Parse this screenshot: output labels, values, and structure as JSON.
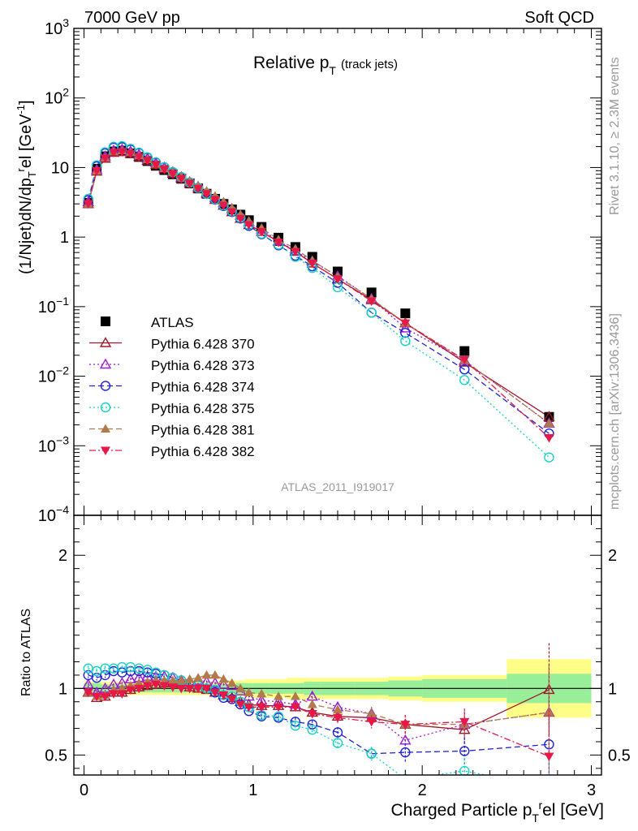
{
  "header": {
    "left": "7000 GeV pp",
    "right": "Soft QCD"
  },
  "side_text": {
    "rivet": "Rivet 3.1.10, ≥ 2.3M events",
    "mcplots": "mcplots.cern.ch [arXiv:1306.3436]"
  },
  "chart_data": [
    {
      "type": "scatter",
      "title": "Relative p_T (track jets)",
      "title_main": "Relative p",
      "title_sub": "T",
      "title_extra": "(track jets)",
      "ylabel": "(1/Njet)dN/dp_T^rel [GeV^-1]",
      "ylabel_parts": [
        "(1/Njet)dN/dp",
        "T",
        "r",
        "el [GeV",
        "-1",
        "]"
      ],
      "yscale": "log",
      "ylim": [
        0.0001,
        1000
      ],
      "xlim": [
        -0.06,
        3.06
      ],
      "yticks": [
        "10^-4",
        "10^-3",
        "10^-2",
        "10^-1",
        "1",
        "10",
        "10^2",
        "10^3"
      ],
      "analysis": "ATLAS_2011_I919017",
      "legend_position": "bottom-left",
      "x": [
        0.025,
        0.075,
        0.125,
        0.175,
        0.225,
        0.275,
        0.325,
        0.375,
        0.425,
        0.475,
        0.525,
        0.575,
        0.625,
        0.675,
        0.725,
        0.775,
        0.825,
        0.875,
        0.925,
        0.975,
        1.05,
        1.15,
        1.25,
        1.35,
        1.5,
        1.7,
        1.9,
        2.25,
        2.75
      ],
      "series": [
        {
          "name": "ATLAS",
          "color": "#000000",
          "marker": "square",
          "line": "none",
          "values": [
            3.1,
            9.6,
            14.5,
            17.0,
            17.5,
            16.0,
            14.2,
            12.4,
            10.6,
            9.2,
            8.0,
            6.9,
            5.9,
            5.0,
            4.2,
            3.55,
            3.0,
            2.5,
            2.1,
            1.75,
            1.4,
            0.98,
            0.72,
            0.52,
            0.32,
            0.16,
            0.08,
            0.023,
            0.0026
          ]
        },
        {
          "name": "Pythia 6.428 370",
          "color": "#a0162a",
          "marker": "triangle-open",
          "line": "solid",
          "values": [
            3.0,
            8.8,
            13.5,
            16.4,
            16.8,
            15.8,
            14.3,
            12.6,
            10.9,
            9.5,
            8.2,
            7.0,
            5.9,
            5.0,
            4.2,
            3.45,
            2.85,
            2.3,
            1.85,
            1.5,
            1.2,
            0.86,
            0.62,
            0.42,
            0.25,
            0.125,
            0.058,
            0.0158,
            0.0026
          ]
        },
        {
          "name": "Pythia 6.428 373",
          "color": "#9b19d2",
          "marker": "triangle-open",
          "line": "dotted",
          "values": [
            3.2,
            9.3,
            14.5,
            17.6,
            18.2,
            17.1,
            15.4,
            13.5,
            11.6,
            10.0,
            8.6,
            7.3,
            6.2,
            5.3,
            4.4,
            3.7,
            3.1,
            2.55,
            2.05,
            1.65,
            1.28,
            0.88,
            0.63,
            0.45,
            0.275,
            0.13,
            0.049,
            0.0168,
            0.0021
          ]
        },
        {
          "name": "Pythia 6.428 374",
          "color": "#2121d8",
          "marker": "circle-open",
          "line": "dashed",
          "values": [
            3.4,
            10.4,
            16.0,
            19.3,
            19.6,
            18.1,
            16.1,
            13.9,
            11.8,
            10.1,
            8.6,
            7.3,
            6.1,
            5.1,
            4.2,
            3.45,
            2.8,
            2.3,
            1.85,
            1.45,
            1.1,
            0.76,
            0.54,
            0.38,
            0.22,
            0.082,
            0.042,
            0.0125,
            0.0015
          ]
        },
        {
          "name": "Pythia 6.428 375",
          "color": "#14d2c1",
          "marker": "circle-open",
          "line": "dotted",
          "values": [
            3.55,
            10.8,
            16.6,
            19.9,
            20.3,
            18.6,
            16.4,
            14.1,
            11.9,
            10.1,
            8.6,
            7.3,
            6.1,
            5.1,
            4.2,
            3.5,
            2.85,
            2.35,
            1.9,
            1.5,
            1.12,
            0.78,
            0.52,
            0.36,
            0.19,
            0.082,
            0.032,
            0.0088,
            0.00068
          ]
        },
        {
          "name": "Pythia 6.428 381",
          "color": "#b27a48",
          "marker": "triangle",
          "line": "dashed",
          "values": [
            3.0,
            9.0,
            13.8,
            16.8,
            17.5,
            16.4,
            14.8,
            13.0,
            11.2,
            9.7,
            8.5,
            7.3,
            6.3,
            5.4,
            4.6,
            3.9,
            3.2,
            2.6,
            2.1,
            1.7,
            1.35,
            0.92,
            0.68,
            0.46,
            0.27,
            0.13,
            0.058,
            0.0168,
            0.0021
          ]
        },
        {
          "name": "Pythia 6.428 382",
          "color": "#e8174a",
          "marker": "triangle-down",
          "line": "dashdot",
          "values": [
            3.0,
            9.0,
            13.6,
            16.4,
            16.8,
            15.8,
            14.2,
            12.6,
            10.9,
            9.4,
            8.1,
            6.9,
            5.9,
            5.0,
            4.2,
            3.45,
            2.85,
            2.3,
            1.85,
            1.5,
            1.2,
            0.84,
            0.62,
            0.42,
            0.25,
            0.12,
            0.058,
            0.0172,
            0.0013
          ]
        }
      ]
    },
    {
      "type": "scatter",
      "xlabel": "Charged Particle p_T^rel [GeV]",
      "xlabel_parts": [
        "Charged Particle p",
        "T",
        "r",
        "el [GeV]"
      ],
      "ylabel": "Ratio to ATLAS",
      "xlim": [
        -0.06,
        3.06
      ],
      "ylim": [
        0.35,
        2.3
      ],
      "xticks": [
        0,
        1,
        2,
        3
      ],
      "yticks": [
        0.5,
        1,
        2
      ],
      "bands": {
        "edges": [
          0,
          0.05,
          0.1,
          0.15,
          0.2,
          0.25,
          0.3,
          0.35,
          0.4,
          0.45,
          0.5,
          0.55,
          0.6,
          0.65,
          0.7,
          0.75,
          0.8,
          0.85,
          0.9,
          0.95,
          1.0,
          1.1,
          1.2,
          1.3,
          1.4,
          1.6,
          1.8,
          2.0,
          2.5,
          3.0
        ],
        "inner": [
          0.04,
          0.04,
          0.03,
          0.03,
          0.03,
          0.03,
          0.03,
          0.03,
          0.03,
          0.03,
          0.03,
          0.03,
          0.03,
          0.03,
          0.03,
          0.03,
          0.03,
          0.03,
          0.04,
          0.04,
          0.04,
          0.04,
          0.04,
          0.05,
          0.05,
          0.05,
          0.06,
          0.07,
          0.11
        ],
        "outer": [
          0.05,
          0.05,
          0.05,
          0.05,
          0.05,
          0.05,
          0.05,
          0.05,
          0.05,
          0.05,
          0.05,
          0.05,
          0.05,
          0.05,
          0.05,
          0.05,
          0.05,
          0.06,
          0.06,
          0.07,
          0.07,
          0.07,
          0.08,
          0.08,
          0.08,
          0.08,
          0.09,
          0.1,
          0.22
        ],
        "inner_color": "#99ee99",
        "outer_color": "#ffff88"
      },
      "x": [
        0.025,
        0.075,
        0.125,
        0.175,
        0.225,
        0.275,
        0.325,
        0.375,
        0.425,
        0.475,
        0.525,
        0.575,
        0.625,
        0.675,
        0.725,
        0.775,
        0.825,
        0.875,
        0.925,
        0.975,
        1.05,
        1.15,
        1.25,
        1.35,
        1.5,
        1.7,
        1.9,
        2.25,
        2.75
      ],
      "series": [
        {
          "name": "Pythia 6.428 370",
          "color": "#a0162a",
          "marker": "triangle-open",
          "line": "solid",
          "values": [
            0.97,
            0.93,
            0.94,
            0.97,
            0.97,
            0.99,
            1.01,
            1.02,
            1.03,
            1.04,
            1.04,
            1.03,
            1.01,
            1.0,
            0.99,
            0.97,
            0.95,
            0.93,
            0.9,
            0.88,
            0.87,
            0.87,
            0.86,
            0.82,
            0.79,
            0.78,
            0.73,
            0.69,
            0.99
          ],
          "errors": [
            0.02,
            0.02,
            0.02,
            0.01,
            0.01,
            0.01,
            0.01,
            0.01,
            0.01,
            0.01,
            0.01,
            0.01,
            0.01,
            0.01,
            0.01,
            0.01,
            0.01,
            0.01,
            0.01,
            0.01,
            0.02,
            0.02,
            0.03,
            0.03,
            0.04,
            0.05,
            0.07,
            0.1,
            0.35
          ]
        },
        {
          "name": "Pythia 6.428 373",
          "color": "#9b19d2",
          "marker": "triangle-open",
          "line": "dotted",
          "values": [
            1.03,
            0.97,
            1.0,
            1.03,
            1.04,
            1.07,
            1.08,
            1.09,
            1.09,
            1.09,
            1.08,
            1.06,
            1.05,
            1.06,
            1.05,
            1.04,
            1.03,
            1.02,
            0.98,
            0.94,
            0.91,
            0.9,
            0.88,
            0.94,
            0.86,
            0.81,
            0.61,
            0.73,
            0.82
          ],
          "errors": [
            0.02,
            0.02,
            0.02,
            0.01,
            0.01,
            0.01,
            0.01,
            0.01,
            0.01,
            0.01,
            0.01,
            0.01,
            0.01,
            0.01,
            0.01,
            0.01,
            0.01,
            0.01,
            0.01,
            0.01,
            0.02,
            0.02,
            0.03,
            0.03,
            0.04,
            0.05,
            0.07,
            0.1,
            0.35
          ]
        },
        {
          "name": "Pythia 6.428 374",
          "color": "#2121d8",
          "marker": "circle-open",
          "line": "dashed",
          "values": [
            1.1,
            1.08,
            1.1,
            1.13,
            1.12,
            1.13,
            1.13,
            1.12,
            1.11,
            1.1,
            1.08,
            1.06,
            1.03,
            1.02,
            1.0,
            0.97,
            0.93,
            0.92,
            0.88,
            0.83,
            0.79,
            0.78,
            0.75,
            0.73,
            0.67,
            0.51,
            0.52,
            0.53,
            0.58
          ],
          "errors": [
            0.02,
            0.02,
            0.02,
            0.01,
            0.01,
            0.01,
            0.01,
            0.01,
            0.01,
            0.01,
            0.01,
            0.01,
            0.01,
            0.01,
            0.01,
            0.01,
            0.01,
            0.01,
            0.01,
            0.01,
            0.02,
            0.02,
            0.03,
            0.03,
            0.04,
            0.05,
            0.07,
            0.1,
            0.35
          ]
        },
        {
          "name": "Pythia 6.428 375",
          "color": "#14d2c1",
          "marker": "circle-open",
          "line": "dotted",
          "values": [
            1.15,
            1.13,
            1.15,
            1.15,
            1.16,
            1.16,
            1.15,
            1.14,
            1.12,
            1.1,
            1.08,
            1.06,
            1.03,
            1.02,
            1.0,
            0.99,
            0.95,
            0.94,
            0.9,
            0.86,
            0.8,
            0.79,
            0.72,
            0.69,
            0.59,
            0.51,
            0.32,
            0.38,
            0.26
          ],
          "errors": [
            0.02,
            0.02,
            0.02,
            0.01,
            0.01,
            0.01,
            0.01,
            0.01,
            0.01,
            0.01,
            0.01,
            0.01,
            0.01,
            0.01,
            0.01,
            0.01,
            0.01,
            0.01,
            0.01,
            0.01,
            0.02,
            0.02,
            0.03,
            0.03,
            0.04,
            0.05,
            0.07,
            0.1,
            0.35
          ]
        },
        {
          "name": "Pythia 6.428 381",
          "color": "#b27a48",
          "marker": "triangle",
          "line": "dashed",
          "values": [
            0.97,
            0.94,
            0.95,
            0.99,
            1.0,
            1.02,
            1.04,
            1.05,
            1.06,
            1.06,
            1.06,
            1.06,
            1.07,
            1.08,
            1.1,
            1.1,
            1.07,
            1.04,
            1.0,
            0.97,
            0.96,
            0.94,
            0.94,
            0.88,
            0.84,
            0.81,
            0.73,
            0.73,
            0.82
          ],
          "errors": [
            0.02,
            0.02,
            0.02,
            0.01,
            0.01,
            0.01,
            0.01,
            0.01,
            0.01,
            0.01,
            0.01,
            0.01,
            0.01,
            0.01,
            0.01,
            0.01,
            0.01,
            0.01,
            0.01,
            0.01,
            0.02,
            0.02,
            0.03,
            0.03,
            0.04,
            0.05,
            0.07,
            0.1,
            0.35
          ]
        },
        {
          "name": "Pythia 6.428 382",
          "color": "#e8174a",
          "marker": "triangle-down",
          "line": "dashdot",
          "values": [
            0.97,
            0.94,
            0.94,
            0.96,
            0.96,
            0.99,
            1.0,
            1.02,
            1.03,
            1.02,
            1.01,
            1.0,
            1.0,
            1.0,
            1.0,
            0.97,
            0.95,
            0.92,
            0.88,
            0.86,
            0.86,
            0.86,
            0.86,
            0.81,
            0.78,
            0.75,
            0.73,
            0.75,
            0.49
          ],
          "errors": [
            0.02,
            0.02,
            0.02,
            0.01,
            0.01,
            0.01,
            0.01,
            0.01,
            0.01,
            0.01,
            0.01,
            0.01,
            0.01,
            0.01,
            0.01,
            0.01,
            0.01,
            0.01,
            0.01,
            0.01,
            0.02,
            0.02,
            0.03,
            0.03,
            0.04,
            0.05,
            0.07,
            0.1,
            0.35
          ]
        }
      ]
    }
  ]
}
